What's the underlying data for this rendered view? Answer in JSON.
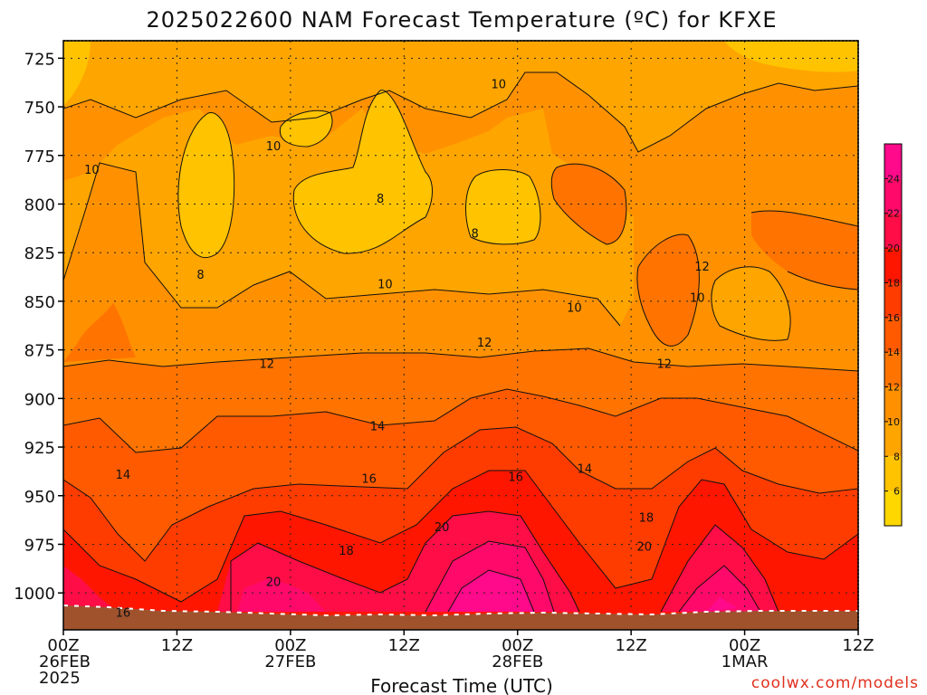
{
  "chart_data": {
    "type": "heatmap",
    "title": "2025022600 NAM Forecast Temperature (ºC) for KFXE",
    "xlabel": "Forecast Time (UTC)",
    "ylabel": "",
    "credit": "coolwx.com/models",
    "x_ticks": [
      {
        "hour": 0,
        "lines": [
          "00Z",
          "26FEB",
          "2025"
        ]
      },
      {
        "hour": 12,
        "lines": [
          "12Z"
        ]
      },
      {
        "hour": 24,
        "lines": [
          "00Z",
          "27FEB"
        ]
      },
      {
        "hour": 36,
        "lines": [
          "12Z"
        ]
      },
      {
        "hour": 48,
        "lines": [
          "00Z",
          "28FEB"
        ]
      },
      {
        "hour": 60,
        "lines": [
          "12Z"
        ]
      },
      {
        "hour": 72,
        "lines": [
          "00Z",
          "1MAR"
        ]
      },
      {
        "hour": 84,
        "lines": [
          "12Z"
        ]
      }
    ],
    "xlim": [
      0,
      84
    ],
    "y_ticks": [
      725,
      750,
      775,
      800,
      825,
      850,
      875,
      900,
      925,
      950,
      975,
      1000
    ],
    "ylim": [
      1019,
      716
    ],
    "y_scale": "pressure (inverted)",
    "grid": true,
    "colorbar": {
      "ticks": [
        6,
        8,
        10,
        12,
        14,
        16,
        18,
        20,
        22,
        24
      ],
      "bins": [
        {
          "min": 4,
          "max": 6,
          "color": "#ffd700"
        },
        {
          "min": 6,
          "max": 8,
          "color": "#ffc300"
        },
        {
          "min": 8,
          "max": 10,
          "color": "#ffa500"
        },
        {
          "min": 10,
          "max": 12,
          "color": "#ff9100"
        },
        {
          "min": 12,
          "max": 14,
          "color": "#ff7400"
        },
        {
          "min": 14,
          "max": 16,
          "color": "#ff5a00"
        },
        {
          "min": 16,
          "max": 18,
          "color": "#ff3c00"
        },
        {
          "min": 18,
          "max": 20,
          "color": "#ff1600"
        },
        {
          "min": 20,
          "max": 22,
          "color": "#ff0d46"
        },
        {
          "min": 22,
          "max": 24,
          "color": "#ff0a6a"
        },
        {
          "min": 24,
          "max": 26,
          "color": "#ff0a8a"
        }
      ]
    },
    "terrain_color": "#a0522d",
    "contour_labels": [
      {
        "text": "10",
        "hour": 46,
        "p": 738
      },
      {
        "text": "10",
        "hour": 22.2,
        "p": 770
      },
      {
        "text": "8",
        "hour": 33.5,
        "p": 797
      },
      {
        "text": "8",
        "hour": 14.5,
        "p": 836
      },
      {
        "text": "8",
        "hour": 43.5,
        "p": 815
      },
      {
        "text": "10",
        "hour": 3,
        "p": 782
      },
      {
        "text": "10",
        "hour": 34,
        "p": 841
      },
      {
        "text": "10",
        "hour": 54,
        "p": 853
      },
      {
        "text": "10",
        "hour": 67,
        "p": 848
      },
      {
        "text": "12",
        "hour": 67.5,
        "p": 832
      },
      {
        "text": "12",
        "hour": 21.5,
        "p": 882
      },
      {
        "text": "12",
        "hour": 44.5,
        "p": 871
      },
      {
        "text": "12",
        "hour": 63.5,
        "p": 882
      },
      {
        "text": "14",
        "hour": 33.2,
        "p": 914
      },
      {
        "text": "14",
        "hour": 6.3,
        "p": 939
      },
      {
        "text": "14",
        "hour": 55.1,
        "p": 936
      },
      {
        "text": "16",
        "hour": 32.3,
        "p": 941
      },
      {
        "text": "16",
        "hour": 47.8,
        "p": 940
      },
      {
        "text": "16",
        "hour": 6.3,
        "p": 1010
      },
      {
        "text": "18",
        "hour": 29.9,
        "p": 978
      },
      {
        "text": "18",
        "hour": 61.6,
        "p": 961
      },
      {
        "text": "20",
        "hour": 22.2,
        "p": 994
      },
      {
        "text": "20",
        "hour": 40,
        "p": 966
      },
      {
        "text": "20",
        "hour": 61.4,
        "p": 976
      }
    ]
  }
}
